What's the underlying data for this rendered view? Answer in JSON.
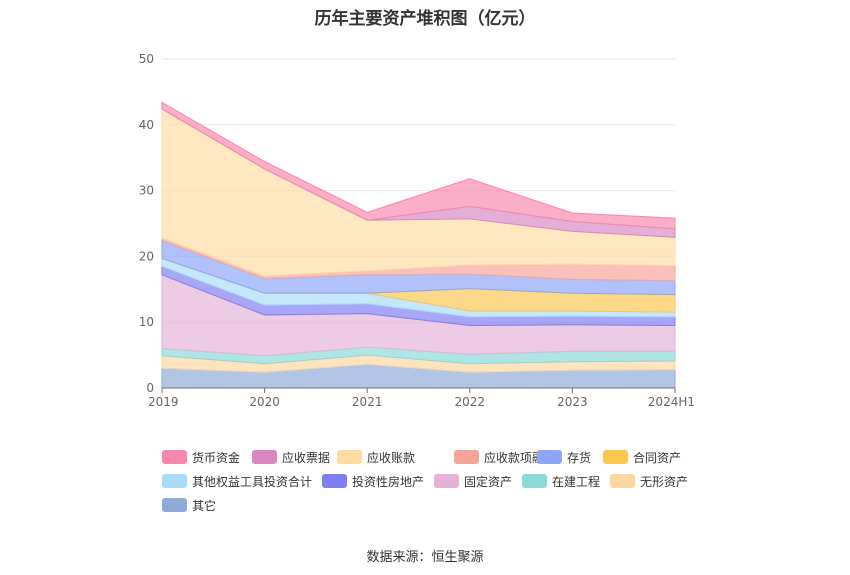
{
  "chart_data": {
    "type": "area",
    "stacked": true,
    "title": "历年主要资产堆积图（亿元）",
    "categories": [
      "2019",
      "2020",
      "2021",
      "2022",
      "2023",
      "2024H1"
    ],
    "ylim": [
      0,
      50
    ],
    "yticks": [
      0,
      10,
      20,
      30,
      40,
      50
    ],
    "grid": true,
    "legend_position": "bottom",
    "series": [
      {
        "name": "其它",
        "color": "#8eaad8",
        "values": [
          3.0,
          2.4,
          3.6,
          2.4,
          2.7,
          2.8
        ]
      },
      {
        "name": "无形资产",
        "color": "#fdd79f",
        "values": [
          1.9,
          1.3,
          1.4,
          1.3,
          1.3,
          1.3
        ]
      },
      {
        "name": "在建工程",
        "color": "#8bd8d8",
        "values": [
          1.1,
          1.2,
          1.2,
          1.4,
          1.6,
          1.5
        ]
      },
      {
        "name": "固定资产",
        "color": "#e5b3d8",
        "values": [
          11.2,
          6.2,
          5.1,
          4.4,
          4.0,
          3.9
        ]
      },
      {
        "name": "投资性房地产",
        "color": "#7f7ef2",
        "values": [
          1.3,
          1.5,
          1.5,
          1.3,
          1.3,
          1.3
        ]
      },
      {
        "name": "其他权益工具投资合计",
        "color": "#a9dbf8",
        "values": [
          1.2,
          1.8,
          1.6,
          0.9,
          0.8,
          0.7
        ]
      },
      {
        "name": "合同资产",
        "color": "#fac751",
        "values": [
          0.0,
          0.0,
          0.0,
          3.4,
          2.7,
          2.7
        ]
      },
      {
        "name": "存货",
        "color": "#8ca5f8",
        "values": [
          2.7,
          2.2,
          2.8,
          2.2,
          2.1,
          2.1
        ]
      },
      {
        "name": "应收款项融资",
        "color": "#f6a497",
        "values": [
          0.4,
          0.4,
          0.6,
          1.4,
          2.3,
          2.3
        ]
      },
      {
        "name": "应收账款",
        "color": "#fedca3",
        "values": [
          19.6,
          16.3,
          7.7,
          7.0,
          5.0,
          4.3
        ]
      },
      {
        "name": "应收票据",
        "color": "#d987c4",
        "values": [
          0.0,
          0.0,
          0.0,
          1.9,
          1.5,
          1.3
        ]
      },
      {
        "name": "货币资金",
        "color": "#f787ae",
        "values": [
          1.0,
          1.1,
          1.2,
          4.2,
          1.3,
          1.6
        ]
      }
    ]
  },
  "legend_items": [
    "货币资金",
    "应收票据",
    "应收账款",
    "应收款项融资",
    "存货",
    "合同资产",
    "其他权益工具投资合计",
    "投资性房地产",
    "固定资产",
    "在建工程",
    "无形资产",
    "其它"
  ],
  "source_text": "数据来源：恒生聚源"
}
